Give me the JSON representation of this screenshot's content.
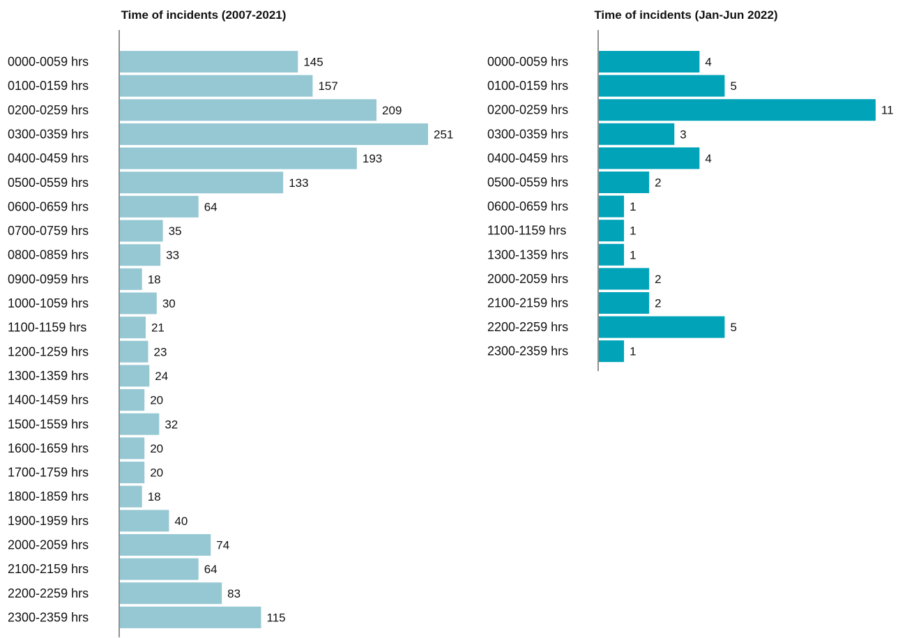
{
  "chart_data": [
    {
      "type": "bar",
      "orientation": "horizontal",
      "title": "Time of incidents (2007-2021)",
      "categories": [
        "0000-0059 hrs",
        "0100-0159 hrs",
        "0200-0259 hrs",
        "0300-0359 hrs",
        "0400-0459 hrs",
        "0500-0559 hrs",
        "0600-0659 hrs",
        "0700-0759 hrs",
        "0800-0859 hrs",
        "0900-0959 hrs",
        "1000-1059 hrs",
        "1100-1159 hrs",
        "1200-1259 hrs",
        "1300-1359 hrs",
        "1400-1459 hrs",
        "1500-1559 hrs",
        "1600-1659 hrs",
        "1700-1759 hrs",
        "1800-1859 hrs",
        "1900-1959 hrs",
        "2000-2059 hrs",
        "2100-2159 hrs",
        "2200-2259 hrs",
        "2300-2359 hrs"
      ],
      "values": [
        145,
        157,
        209,
        251,
        193,
        133,
        64,
        35,
        33,
        18,
        30,
        21,
        23,
        24,
        20,
        32,
        20,
        20,
        18,
        40,
        74,
        64,
        83,
        115
      ],
      "color": "#96c8d4",
      "xlim": [
        0,
        251
      ],
      "grid": false,
      "data_labels": true
    },
    {
      "type": "bar",
      "orientation": "horizontal",
      "title": "Time of incidents (Jan-Jun 2022)",
      "categories": [
        "0000-0059 hrs",
        "0100-0159 hrs",
        "0200-0259 hrs",
        "0300-0359 hrs",
        "0400-0459 hrs",
        "0500-0559 hrs",
        "0600-0659 hrs",
        "1100-1159 hrs",
        "1300-1359 hrs",
        "2000-2059 hrs",
        "2100-2159 hrs",
        "2200-2259 hrs",
        "2300-2359 hrs"
      ],
      "values": [
        4,
        5,
        11,
        3,
        4,
        2,
        1,
        1,
        1,
        2,
        2,
        5,
        1
      ],
      "color": "#00a3b8",
      "xlim": [
        0,
        11
      ],
      "grid": false,
      "data_labels": true
    }
  ]
}
